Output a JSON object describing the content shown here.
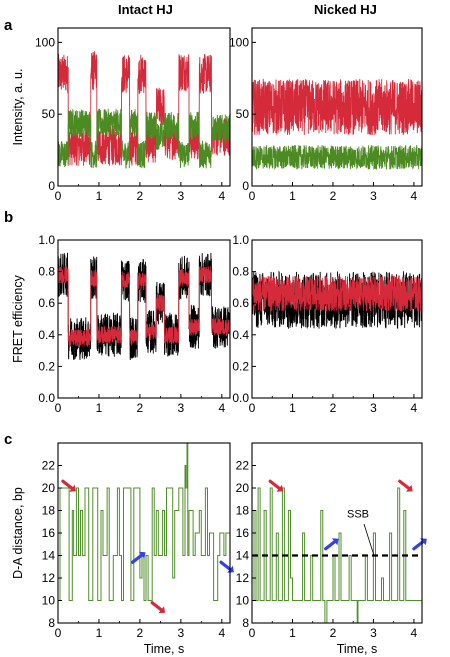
{
  "figure": {
    "column_titles": [
      "Intact HJ",
      "Nicked HJ"
    ],
    "panel_letters": [
      "a",
      "b",
      "c"
    ]
  },
  "colors": {
    "donor": "#4c8a22",
    "acceptor": "#d42a3a",
    "fret_raw": "#000000",
    "fret_fit": "#d42a3a",
    "distance": "#4f8f2a",
    "red_arrow": "#d42a3a",
    "blue_arrow": "#3240e6"
  },
  "chart_data": [
    {
      "panel": "a",
      "column": "Intact HJ",
      "type": "line",
      "ylabel": "Intensity, a. u.",
      "xlabel": "",
      "xlim": [
        0,
        4.2
      ],
      "ylim": [
        0,
        110
      ],
      "xticks": [
        0,
        1,
        2,
        3,
        4
      ],
      "yticks": [
        0,
        50,
        100
      ],
      "series": [
        {
          "role": "acceptor",
          "color_key": "acceptor",
          "levels": [
            [
              0,
              0.25,
              78
            ],
            [
              0.25,
              0.8,
              28
            ],
            [
              0.8,
              0.95,
              80
            ],
            [
              0.95,
              1.55,
              28
            ],
            [
              1.55,
              1.75,
              78
            ],
            [
              1.75,
              1.95,
              28
            ],
            [
              1.95,
              2.15,
              78
            ],
            [
              2.15,
              2.4,
              30
            ],
            [
              2.4,
              2.6,
              55
            ],
            [
              2.6,
              2.95,
              32
            ],
            [
              2.95,
              3.2,
              80
            ],
            [
              3.2,
              3.45,
              32
            ],
            [
              3.45,
              3.75,
              78
            ],
            [
              3.75,
              4.2,
              35
            ]
          ],
          "noise": 10
        },
        {
          "role": "donor",
          "color_key": "donor",
          "levels": [
            [
              0,
              0.25,
              22
            ],
            [
              0.25,
              0.8,
              44
            ],
            [
              0.8,
              0.95,
              22
            ],
            [
              0.95,
              1.55,
              44
            ],
            [
              1.55,
              1.75,
              22
            ],
            [
              1.75,
              1.95,
              44
            ],
            [
              1.95,
              2.15,
              22
            ],
            [
              2.15,
              2.4,
              42
            ],
            [
              2.4,
              2.6,
              35
            ],
            [
              2.6,
              2.95,
              42
            ],
            [
              2.95,
              3.2,
              22
            ],
            [
              3.2,
              3.45,
              42
            ],
            [
              3.45,
              3.75,
              22
            ],
            [
              3.75,
              4.2,
              40
            ]
          ],
          "noise": 7
        }
      ]
    },
    {
      "panel": "a",
      "column": "Nicked HJ",
      "type": "line",
      "ylabel": "",
      "xlabel": "",
      "xlim": [
        0,
        4.2
      ],
      "ylim": [
        0,
        110
      ],
      "xticks": [
        0,
        1,
        2,
        3,
        4
      ],
      "yticks": [
        0,
        50,
        100
      ],
      "series": [
        {
          "role": "acceptor",
          "color_key": "acceptor",
          "levels": [
            [
              0,
              4.2,
              55
            ]
          ],
          "noise": 14
        },
        {
          "role": "donor",
          "color_key": "donor",
          "levels": [
            [
              0,
              4.2,
              20
            ]
          ],
          "noise": 6
        }
      ]
    },
    {
      "panel": "b",
      "column": "Intact HJ",
      "type": "line",
      "ylabel": "FRET efficiency",
      "xlabel": "",
      "xlim": [
        0,
        4.2
      ],
      "ylim": [
        0,
        1.0
      ],
      "xticks": [
        0,
        1,
        2,
        3,
        4
      ],
      "yticks": [
        0.0,
        0.2,
        0.4,
        0.6,
        0.8,
        1.0
      ],
      "series": [
        {
          "role": "raw",
          "color_key": "fret_raw",
          "levels": [
            [
              0,
              0.25,
              0.78
            ],
            [
              0.25,
              0.8,
              0.38
            ],
            [
              0.8,
              0.95,
              0.76
            ],
            [
              0.95,
              1.55,
              0.4
            ],
            [
              1.55,
              1.75,
              0.75
            ],
            [
              1.75,
              1.95,
              0.38
            ],
            [
              1.95,
              2.15,
              0.74
            ],
            [
              2.15,
              2.4,
              0.42
            ],
            [
              2.4,
              2.6,
              0.6
            ],
            [
              2.6,
              2.95,
              0.4
            ],
            [
              2.95,
              3.2,
              0.76
            ],
            [
              3.2,
              3.45,
              0.45
            ],
            [
              3.45,
              3.75,
              0.78
            ],
            [
              3.75,
              4.2,
              0.45
            ]
          ],
          "noise": 0.1
        },
        {
          "role": "fit",
          "color_key": "fret_fit",
          "levels": [
            [
              0,
              0.25,
              0.78
            ],
            [
              0.25,
              0.8,
              0.38
            ],
            [
              0.8,
              0.95,
              0.76
            ],
            [
              0.95,
              1.55,
              0.4
            ],
            [
              1.55,
              1.75,
              0.75
            ],
            [
              1.75,
              1.95,
              0.38
            ],
            [
              1.95,
              2.15,
              0.74
            ],
            [
              2.15,
              2.4,
              0.42
            ],
            [
              2.4,
              2.6,
              0.6
            ],
            [
              2.6,
              2.95,
              0.4
            ],
            [
              2.95,
              3.2,
              0.76
            ],
            [
              3.2,
              3.45,
              0.45
            ],
            [
              3.45,
              3.75,
              0.78
            ],
            [
              3.75,
              4.2,
              0.45
            ]
          ],
          "noise": 0.04
        }
      ]
    },
    {
      "panel": "b",
      "column": "Nicked HJ",
      "type": "line",
      "ylabel": "",
      "xlabel": "",
      "xlim": [
        0,
        4.2
      ],
      "ylim": [
        0,
        1.0
      ],
      "xticks": [
        0,
        1,
        2,
        3,
        4
      ],
      "yticks": [
        0.0,
        0.2,
        0.4,
        0.6,
        0.8,
        1.0
      ],
      "series": [
        {
          "role": "raw",
          "color_key": "fret_raw",
          "levels": [
            [
              0,
              4.2,
              0.62
            ]
          ],
          "noise": 0.13
        },
        {
          "role": "fit",
          "color_key": "fret_fit",
          "levels": [
            [
              0,
              4.2,
              0.66
            ]
          ],
          "noise": 0.08
        }
      ]
    },
    {
      "panel": "c",
      "column": "Intact HJ",
      "type": "line",
      "ylabel": "D-A distance, bp",
      "xlabel": "Time, s",
      "xlim": [
        0,
        4.2
      ],
      "ylim": [
        8,
        24
      ],
      "xticks": [
        0,
        1,
        2,
        3,
        4
      ],
      "yticks": [
        8,
        10,
        12,
        14,
        16,
        18,
        20,
        22
      ],
      "series": [
        {
          "role": "distance",
          "color_key": "distance",
          "points": [
            [
              0,
              10
            ],
            [
              0.05,
              20
            ],
            [
              0.25,
              20
            ],
            [
              0.27,
              10
            ],
            [
              0.35,
              18
            ],
            [
              0.38,
              14
            ],
            [
              0.45,
              20
            ],
            [
              0.5,
              14
            ],
            [
              0.55,
              18
            ],
            [
              0.6,
              14
            ],
            [
              0.66,
              20
            ],
            [
              0.75,
              10
            ],
            [
              0.85,
              20
            ],
            [
              0.95,
              20
            ],
            [
              0.97,
              10
            ],
            [
              1.05,
              18
            ],
            [
              1.1,
              14
            ],
            [
              1.2,
              20
            ],
            [
              1.25,
              10
            ],
            [
              1.35,
              14
            ],
            [
              1.45,
              20
            ],
            [
              1.5,
              14
            ],
            [
              1.55,
              10
            ],
            [
              1.6,
              20
            ],
            [
              1.75,
              20
            ],
            [
              1.78,
              10
            ],
            [
              1.85,
              20
            ],
            [
              1.95,
              20
            ],
            [
              2.0,
              12
            ],
            [
              2.05,
              14
            ],
            [
              2.1,
              10
            ],
            [
              2.15,
              14
            ],
            [
              2.2,
              10
            ],
            [
              2.3,
              20
            ],
            [
              2.35,
              14
            ],
            [
              2.4,
              18
            ],
            [
              2.45,
              14
            ],
            [
              2.55,
              18
            ],
            [
              2.6,
              14
            ],
            [
              2.65,
              20
            ],
            [
              2.75,
              20
            ],
            [
              2.8,
              12
            ],
            [
              2.85,
              18
            ],
            [
              2.95,
              20
            ],
            [
              3.05,
              14
            ],
            [
              3.1,
              22
            ],
            [
              3.12,
              20
            ],
            [
              3.15,
              24
            ],
            [
              3.17,
              14
            ],
            [
              3.2,
              18
            ],
            [
              3.3,
              14
            ],
            [
              3.35,
              16
            ],
            [
              3.45,
              18
            ],
            [
              3.5,
              14
            ],
            [
              3.6,
              20
            ],
            [
              3.65,
              14
            ],
            [
              3.7,
              16
            ],
            [
              3.8,
              10
            ],
            [
              3.9,
              14
            ],
            [
              3.95,
              16
            ],
            [
              4.05,
              14
            ],
            [
              4.1,
              16
            ],
            [
              4.2,
              14
            ]
          ]
        }
      ],
      "arrows": [
        {
          "color_key": "red_arrow",
          "at": [
            0.12,
            20.6
          ],
          "dir": "down-right"
        },
        {
          "color_key": "blue_arrow",
          "at": [
            1.82,
            13.4
          ],
          "dir": "up-right"
        },
        {
          "color_key": "red_arrow",
          "at": [
            2.3,
            9.8
          ],
          "dir": "down-right"
        },
        {
          "color_key": "blue_arrow",
          "at": [
            3.98,
            13.4
          ],
          "dir": "down-right"
        }
      ]
    },
    {
      "panel": "c",
      "column": "Nicked HJ",
      "type": "line",
      "ylabel": "",
      "xlabel": "Time, s",
      "xlim": [
        0,
        4.2
      ],
      "ylim": [
        8,
        24
      ],
      "xticks": [
        0,
        1,
        2,
        3,
        4
      ],
      "yticks": [
        8,
        10,
        12,
        14,
        16,
        18,
        20,
        22
      ],
      "reference_line": {
        "y": 14,
        "label": "SSB",
        "style": "dashed"
      },
      "series": [
        {
          "role": "distance",
          "color_key": "distance",
          "points": [
            [
              0,
              10
            ],
            [
              0.05,
              18
            ],
            [
              0.1,
              10
            ],
            [
              0.15,
              20
            ],
            [
              0.2,
              10
            ],
            [
              0.3,
              18
            ],
            [
              0.35,
              10
            ],
            [
              0.45,
              20
            ],
            [
              0.5,
              10
            ],
            [
              0.6,
              16
            ],
            [
              0.65,
              10
            ],
            [
              0.75,
              20
            ],
            [
              0.8,
              10
            ],
            [
              0.9,
              18
            ],
            [
              0.95,
              12
            ],
            [
              1.0,
              10
            ],
            [
              1.2,
              10
            ],
            [
              1.25,
              16
            ],
            [
              1.3,
              10
            ],
            [
              1.45,
              14
            ],
            [
              1.5,
              10
            ],
            [
              1.6,
              10
            ],
            [
              1.7,
              18
            ],
            [
              1.75,
              10
            ],
            [
              1.8,
              8
            ],
            [
              1.85,
              10
            ],
            [
              2.0,
              14
            ],
            [
              2.05,
              10
            ],
            [
              2.15,
              16
            ],
            [
              2.2,
              10
            ],
            [
              2.4,
              14
            ],
            [
              2.45,
              10
            ],
            [
              2.6,
              8
            ],
            [
              2.62,
              10
            ],
            [
              2.8,
              14
            ],
            [
              2.85,
              10
            ],
            [
              3.0,
              16
            ],
            [
              3.05,
              10
            ],
            [
              3.2,
              12
            ],
            [
              3.25,
              10
            ],
            [
              3.4,
              16
            ],
            [
              3.45,
              10
            ],
            [
              3.6,
              20
            ],
            [
              3.65,
              10
            ],
            [
              3.75,
              18
            ],
            [
              3.8,
              10
            ],
            [
              4.2,
              10
            ]
          ]
        }
      ],
      "arrows": [
        {
          "color_key": "red_arrow",
          "at": [
            0.45,
            20.6
          ],
          "dir": "down-right"
        },
        {
          "color_key": "blue_arrow",
          "at": [
            1.82,
            14.6
          ],
          "dir": "up-right"
        },
        {
          "color_key": "red_arrow",
          "at": [
            3.65,
            20.6
          ],
          "dir": "down-right"
        },
        {
          "color_key": "blue_arrow",
          "at": [
            4.0,
            14.6
          ],
          "dir": "up-right"
        }
      ]
    }
  ]
}
